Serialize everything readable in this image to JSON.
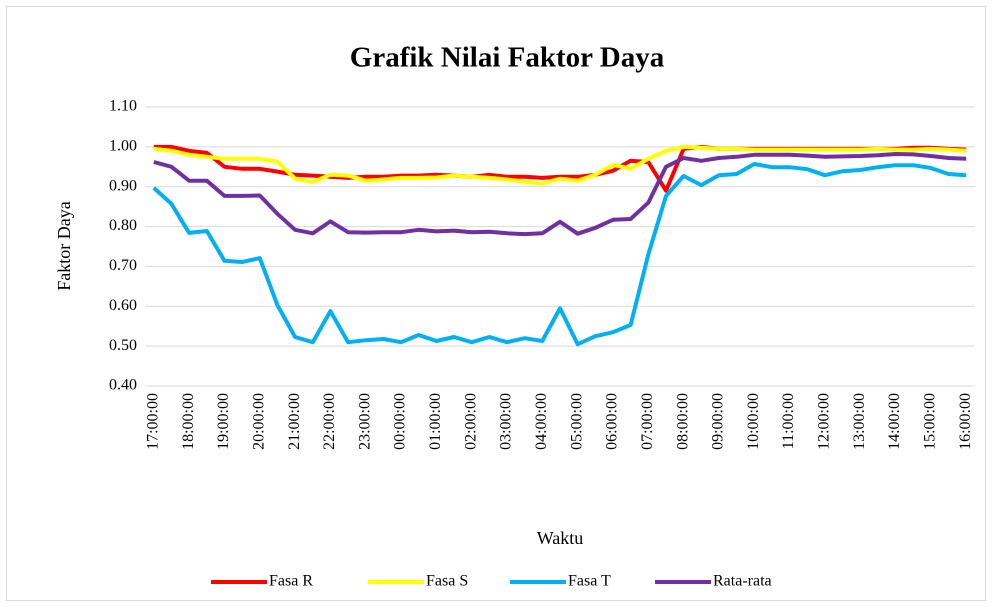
{
  "chart_data": {
    "type": "line",
    "title": "Grafik Nilai Faktor Daya",
    "xlabel": "Waktu",
    "ylabel": "Faktor Daya",
    "categories": [
      "17:00:00",
      null,
      "18:00:00",
      null,
      "19:00:00",
      null,
      "20:00:00",
      null,
      "21:00:00",
      null,
      "22:00:00",
      null,
      "23:00:00",
      null,
      "00:00:00",
      null,
      "01:00:00",
      null,
      "02:00:00",
      null,
      "03:00:00",
      null,
      "04:00:00",
      null,
      "05:00:00",
      null,
      "06:00:00",
      null,
      "07:00:00",
      null,
      "08:00:00",
      null,
      "09:00:00",
      null,
      "10:00:00",
      null,
      "11:00:00",
      null,
      "12:00:00",
      null,
      "13:00:00",
      null,
      "14:00:00",
      null,
      "15:00:00",
      null,
      "16:00:00"
    ],
    "series": [
      {
        "name": "Fasa R",
        "color": "#ff0000",
        "values": [
          1.0,
          1.0,
          0.99,
          0.985,
          0.95,
          0.945,
          0.945,
          0.938,
          0.93,
          0.928,
          0.925,
          0.922,
          0.925,
          0.925,
          0.928,
          0.928,
          0.93,
          0.928,
          0.925,
          0.93,
          0.925,
          0.925,
          0.922,
          0.925,
          0.925,
          0.93,
          0.94,
          0.965,
          0.962,
          0.89,
          0.995,
          1.0,
          0.995,
          0.995,
          0.995,
          0.995,
          0.995,
          0.995,
          0.995,
          0.995,
          0.995,
          0.995,
          0.995,
          0.998,
          0.998,
          0.995,
          0.993
        ]
      },
      {
        "name": "Fasa S",
        "color": "#ffff00",
        "values": [
          0.995,
          0.99,
          0.98,
          0.975,
          0.97,
          0.97,
          0.97,
          0.963,
          0.92,
          0.912,
          0.93,
          0.928,
          0.915,
          0.918,
          0.922,
          0.922,
          0.923,
          0.928,
          0.925,
          0.922,
          0.918,
          0.912,
          0.908,
          0.92,
          0.915,
          0.93,
          0.955,
          0.945,
          0.97,
          0.99,
          1.0,
          0.998,
          0.995,
          0.995,
          0.993,
          0.993,
          0.993,
          0.993,
          0.993,
          0.993,
          0.993,
          0.995,
          0.993,
          0.993,
          0.995,
          0.993,
          0.99
        ]
      },
      {
        "name": "Fasa T",
        "color": "#00b0f0",
        "values": [
          0.897,
          0.857,
          0.784,
          0.789,
          0.714,
          0.711,
          0.721,
          0.603,
          0.523,
          0.51,
          0.588,
          0.51,
          0.515,
          0.518,
          0.51,
          0.528,
          0.513,
          0.523,
          0.51,
          0.523,
          0.51,
          0.52,
          0.513,
          0.595,
          0.505,
          0.525,
          0.535,
          0.553,
          0.73,
          0.877,
          0.927,
          0.904,
          0.929,
          0.932,
          0.957,
          0.949,
          0.949,
          0.944,
          0.929,
          0.939,
          0.942,
          0.949,
          0.954,
          0.954,
          0.947,
          0.932,
          0.929
        ]
      },
      {
        "name": "Rata-rata",
        "color": "#7030a0",
        "values": [
          0.962,
          0.95,
          0.915,
          0.915,
          0.877,
          0.877,
          0.878,
          0.832,
          0.792,
          0.783,
          0.813,
          0.786,
          0.785,
          0.786,
          0.786,
          0.792,
          0.788,
          0.79,
          0.786,
          0.787,
          0.783,
          0.781,
          0.783,
          0.812,
          0.782,
          0.797,
          0.817,
          0.819,
          0.86,
          0.95,
          0.972,
          0.965,
          0.972,
          0.975,
          0.98,
          0.98,
          0.98,
          0.978,
          0.975,
          0.976,
          0.977,
          0.979,
          0.982,
          0.981,
          0.977,
          0.972,
          0.97
        ]
      }
    ],
    "ylim": [
      0.4,
      1.1
    ],
    "yticks": [
      {
        "value": 0.4,
        "label": "0.40"
      },
      {
        "value": 0.5,
        "label": "0.50"
      },
      {
        "value": 0.6,
        "label": "0.60"
      },
      {
        "value": 0.7,
        "label": "0.70"
      },
      {
        "value": 0.8,
        "label": "0.80"
      },
      {
        "value": 0.9,
        "label": "0.90"
      },
      {
        "value": 1.0,
        "label": "1.00"
      },
      {
        "value": 1.1,
        "label": "1.10"
      }
    ],
    "grid": true,
    "legend": "bottom"
  }
}
